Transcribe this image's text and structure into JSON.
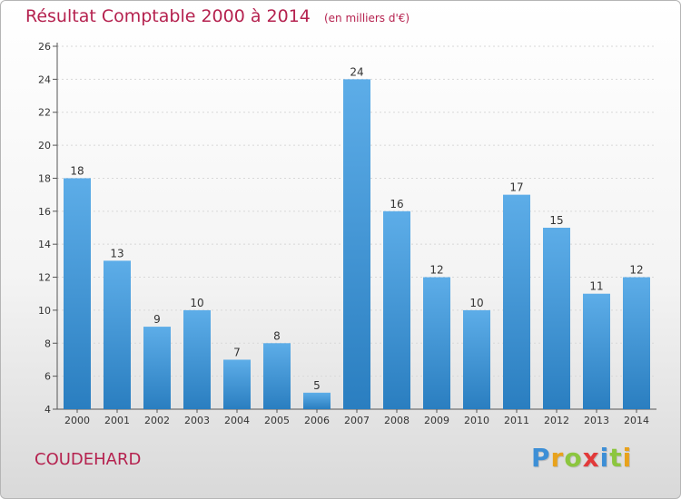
{
  "header": {
    "title": "Résultat Comptable 2000 à 2014",
    "subtitle": "(en milliers d'€)"
  },
  "commune": "COUDEHARD",
  "logo": {
    "text": "Proxiti",
    "letters": [
      {
        "ch": "P",
        "color": "#3d8fd6"
      },
      {
        "ch": "r",
        "color": "#e8a21c"
      },
      {
        "ch": "o",
        "color": "#8cc63f"
      },
      {
        "ch": "x",
        "color": "#e23a3a"
      },
      {
        "ch": "i",
        "color": "#3d8fd6"
      },
      {
        "ch": "t",
        "color": "#8cc63f"
      },
      {
        "ch": "i",
        "color": "#e8a21c"
      }
    ]
  },
  "colors": {
    "title": "#b5224f",
    "bar_light": "#5dade8",
    "bar_dark": "#2a7ec0",
    "axis": "#555555",
    "grid": "#d8d8d8"
  },
  "chart_data": {
    "type": "bar",
    "title": "Résultat Comptable 2000 à 2014",
    "subtitle": "(en milliers d'€)",
    "xlabel": "",
    "ylabel": "",
    "categories": [
      "2000",
      "2001",
      "2002",
      "2003",
      "2004",
      "2005",
      "2006",
      "2007",
      "2008",
      "2009",
      "2010",
      "2011",
      "2012",
      "2013",
      "2014"
    ],
    "values": [
      18,
      13,
      9,
      10,
      7,
      8,
      5,
      24,
      16,
      12,
      10,
      17,
      15,
      11,
      12
    ],
    "ylim": [
      4,
      26
    ],
    "yticks": [
      4,
      6,
      8,
      10,
      12,
      14,
      16,
      18,
      20,
      22,
      24,
      26
    ],
    "grid": true,
    "legend": "none",
    "data_labels": true
  }
}
